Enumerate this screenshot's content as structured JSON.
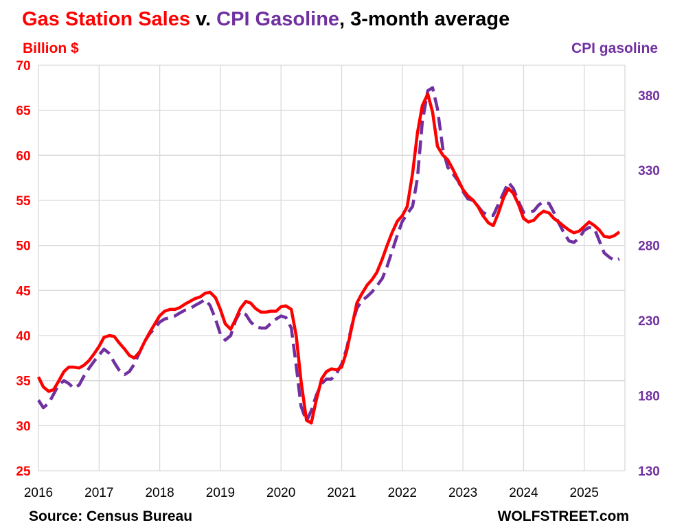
{
  "title": {
    "part1": "Gas Station Sales",
    "part2": " v. ",
    "part3": "CPI Gasoline",
    "part4": ", 3-month average"
  },
  "source": "Source: Census Bureau",
  "credit": "WOLFSTREET.com",
  "colors": {
    "sales": "#ff0000",
    "cpi": "#7030a0",
    "grid": "#d9d9d9"
  },
  "chart_data": {
    "type": "line",
    "title": "Gas Station Sales v. CPI Gasoline, 3-month average",
    "ylabel_left": "Billion $",
    "ylabel_right": "CPI gasoline",
    "x_ticks": [
      "2016",
      "2017",
      "2018",
      "2019",
      "2020",
      "2021",
      "2022",
      "2023",
      "2024",
      "2025"
    ],
    "y_left": {
      "min": 25,
      "max": 70,
      "ticks": [
        25,
        30,
        35,
        40,
        45,
        50,
        55,
        60,
        65,
        70
      ]
    },
    "y_right": {
      "min": 130,
      "max": 400,
      "ticks": [
        130,
        180,
        230,
        280,
        330,
        380
      ]
    },
    "grid": true,
    "series": [
      {
        "name": "Gas Station Sales",
        "axis": "left",
        "style": "solid",
        "x": [
          2016.0,
          2016.08,
          2016.17,
          2016.25,
          2016.33,
          2016.42,
          2016.5,
          2016.58,
          2016.67,
          2016.75,
          2016.83,
          2016.92,
          2017.0,
          2017.08,
          2017.17,
          2017.25,
          2017.33,
          2017.42,
          2017.5,
          2017.58,
          2017.67,
          2017.75,
          2017.83,
          2017.92,
          2018.0,
          2018.08,
          2018.17,
          2018.25,
          2018.33,
          2018.42,
          2018.5,
          2018.58,
          2018.67,
          2018.75,
          2018.83,
          2018.92,
          2019.0,
          2019.08,
          2019.17,
          2019.25,
          2019.33,
          2019.42,
          2019.5,
          2019.58,
          2019.67,
          2019.75,
          2019.83,
          2019.92,
          2020.0,
          2020.08,
          2020.17,
          2020.25,
          2020.33,
          2020.42,
          2020.5,
          2020.58,
          2020.67,
          2020.75,
          2020.83,
          2020.92,
          2021.0,
          2021.08,
          2021.17,
          2021.25,
          2021.33,
          2021.42,
          2021.5,
          2021.58,
          2021.67,
          2021.75,
          2021.83,
          2021.92,
          2022.0,
          2022.08,
          2022.17,
          2022.25,
          2022.33,
          2022.42,
          2022.5,
          2022.58,
          2022.67,
          2022.75,
          2022.83,
          2022.92,
          2023.0,
          2023.08,
          2023.17,
          2023.25,
          2023.33,
          2023.42,
          2023.5,
          2023.58,
          2023.67,
          2023.75,
          2023.83,
          2023.92,
          2024.0,
          2024.08,
          2024.17,
          2024.25,
          2024.33,
          2024.42,
          2024.5,
          2024.58,
          2024.67,
          2024.75,
          2024.83,
          2024.92,
          2025.0,
          2025.08,
          2025.17,
          2025.25,
          2025.33,
          2025.42,
          2025.5,
          2025.58
        ],
        "values": [
          35.4,
          34.3,
          33.8,
          34.0,
          34.9,
          36.0,
          36.5,
          36.5,
          36.4,
          36.7,
          37.2,
          38.0,
          38.8,
          39.8,
          40.0,
          39.9,
          39.2,
          38.5,
          37.8,
          37.5,
          38.2,
          39.3,
          40.3,
          41.3,
          42.2,
          42.7,
          42.9,
          42.9,
          43.1,
          43.5,
          43.8,
          44.1,
          44.3,
          44.7,
          44.8,
          44.2,
          42.9,
          41.3,
          40.7,
          41.8,
          43.0,
          43.8,
          43.6,
          43.0,
          42.6,
          42.6,
          42.7,
          42.7,
          43.2,
          43.3,
          42.9,
          40.0,
          35.0,
          30.6,
          30.3,
          32.8,
          35.2,
          36.0,
          36.3,
          36.2,
          36.5,
          38.2,
          41.0,
          43.6,
          44.6,
          45.6,
          46.2,
          47.0,
          48.5,
          50.0,
          51.4,
          52.7,
          53.3,
          54.3,
          58.0,
          62.5,
          65.5,
          66.8,
          64.8,
          61.0,
          60.0,
          59.5,
          58.5,
          57.3,
          56.2,
          55.5,
          55.0,
          54.3,
          53.3,
          52.5,
          52.2,
          53.5,
          55.3,
          56.3,
          55.8,
          54.5,
          53.0,
          52.6,
          52.8,
          53.4,
          53.8,
          53.6,
          53.0,
          52.6,
          52.1,
          51.7,
          51.4,
          51.6,
          52.1,
          52.6,
          52.2,
          51.7,
          51.0,
          50.9,
          51.1,
          51.5
        ]
      },
      {
        "name": "CPI Gasoline",
        "axis": "right",
        "style": "dashed",
        "x": [
          2016.0,
          2016.08,
          2016.17,
          2016.25,
          2016.33,
          2016.42,
          2016.5,
          2016.58,
          2016.67,
          2016.75,
          2016.83,
          2016.92,
          2017.0,
          2017.08,
          2017.17,
          2017.25,
          2017.33,
          2017.42,
          2017.5,
          2017.58,
          2017.67,
          2017.75,
          2017.83,
          2017.92,
          2018.0,
          2018.08,
          2018.17,
          2018.25,
          2018.33,
          2018.42,
          2018.5,
          2018.58,
          2018.67,
          2018.75,
          2018.83,
          2018.92,
          2019.0,
          2019.08,
          2019.17,
          2019.25,
          2019.33,
          2019.42,
          2019.5,
          2019.58,
          2019.67,
          2019.75,
          2019.83,
          2019.92,
          2020.0,
          2020.08,
          2020.17,
          2020.25,
          2020.33,
          2020.42,
          2020.5,
          2020.58,
          2020.67,
          2020.75,
          2020.83,
          2020.92,
          2021.0,
          2021.08,
          2021.17,
          2021.25,
          2021.33,
          2021.42,
          2021.5,
          2021.58,
          2021.67,
          2021.75,
          2021.83,
          2021.92,
          2022.0,
          2022.08,
          2022.17,
          2022.25,
          2022.33,
          2022.42,
          2022.5,
          2022.58,
          2022.67,
          2022.75,
          2022.83,
          2022.92,
          2023.0,
          2023.08,
          2023.17,
          2023.25,
          2023.33,
          2023.42,
          2023.5,
          2023.58,
          2023.67,
          2023.75,
          2023.83,
          2023.92,
          2024.0,
          2024.08,
          2024.17,
          2024.25,
          2024.33,
          2024.42,
          2024.5,
          2024.58,
          2024.67,
          2024.75,
          2024.83,
          2024.92,
          2025.0,
          2025.08,
          2025.17,
          2025.25,
          2025.33,
          2025.42,
          2025.5,
          2025.58
        ],
        "values": [
          177,
          172,
          175,
          181,
          187,
          190,
          188,
          185,
          187,
          193,
          198,
          203,
          207,
          211,
          208,
          202,
          197,
          194,
          196,
          201,
          209,
          216,
          221,
          225,
          229,
          231,
          232,
          233,
          235,
          237,
          238,
          240,
          242,
          244,
          240,
          231,
          221,
          217,
          220,
          230,
          236,
          234,
          229,
          226,
          225,
          225,
          228,
          231,
          233,
          232,
          225,
          200,
          173,
          163,
          170,
          180,
          188,
          191,
          191,
          195,
          201,
          211,
          227,
          238,
          243,
          246,
          249,
          253,
          258,
          266,
          276,
          287,
          296,
          301,
          306,
          325,
          362,
          383,
          385,
          371,
          344,
          332,
          328,
          323,
          316,
          311,
          310,
          306,
          302,
          300,
          300,
          307,
          315,
          322,
          318,
          309,
          302,
          302,
          303,
          307,
          309,
          308,
          302,
          295,
          288,
          283,
          282,
          285,
          290,
          292,
          291,
          283,
          275,
          272,
          270,
          271
        ]
      }
    ]
  }
}
